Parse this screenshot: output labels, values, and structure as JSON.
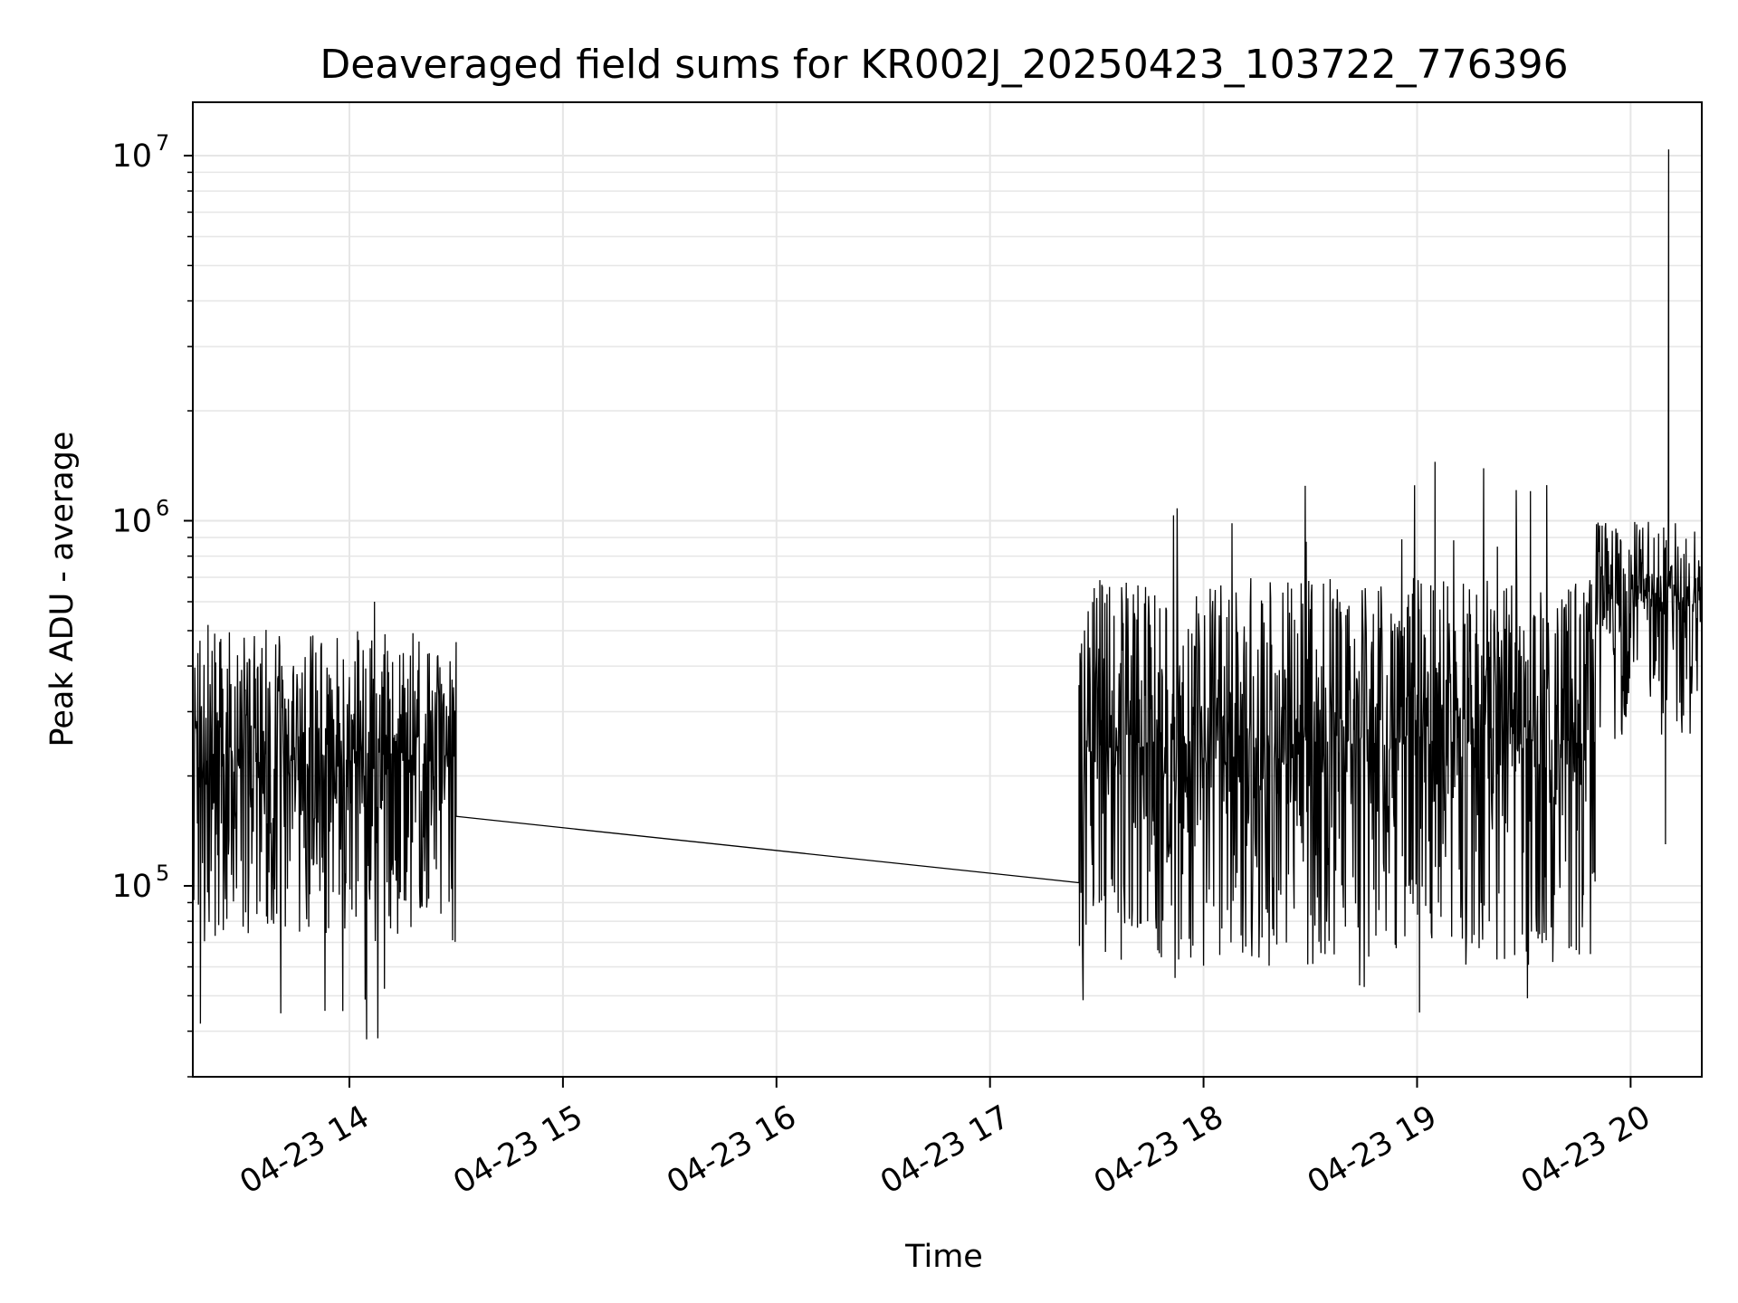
{
  "chart_data": {
    "type": "line",
    "title": "Deaveraged field sums for KR002J_20250423_103722_776396",
    "xlabel": "Time",
    "ylabel": "Peak ADU - average",
    "yscale": "log",
    "ylim": [
      30000,
      14000000
    ],
    "xlim": [
      "04-23 13:16",
      "04-23 20:20"
    ],
    "grid": true,
    "line_color": "#000000",
    "grid_color": "#e6e6e6",
    "x_ticks": [
      {
        "label": "04-23 14",
        "hour": 14
      },
      {
        "label": "04-23 15",
        "hour": 15
      },
      {
        "label": "04-23 16",
        "hour": 16
      },
      {
        "label": "04-23 17",
        "hour": 17
      },
      {
        "label": "04-23 18",
        "hour": 18
      },
      {
        "label": "04-23 19",
        "hour": 19
      },
      {
        "label": "04-23 20",
        "hour": 20
      }
    ],
    "y_ticks": [
      {
        "base": "10",
        "exp": "5",
        "value": 100000
      },
      {
        "base": "10",
        "exp": "6",
        "value": 1000000
      },
      {
        "base": "10",
        "exp": "7",
        "value": 10000000
      }
    ],
    "series": [
      {
        "segments": [
          {
            "time_start": "04-23 13:16",
            "time_end": "04-23 14:30",
            "baseline": 220000,
            "typical_min": 70000,
            "typical_max": 500000,
            "max": 600000,
            "min": 38000
          },
          {
            "time_start": "04-23 14:30",
            "time_end": "04-23 17:25",
            "points": [
              [
                "04-23 14:30",
                155000
              ],
              [
                "04-23 17:25",
                102000
              ]
            ]
          },
          {
            "time_start": "04-23 17:25",
            "time_end": "04-23 19:50",
            "baseline": 250000,
            "typical_min": 60000,
            "typical_max": 700000,
            "max": 1450000,
            "min": 45000
          },
          {
            "time_start": "04-23 19:50",
            "time_end": "04-23 20:20",
            "baseline": 600000,
            "typical_min": 250000,
            "typical_max": 1000000,
            "max": 10400000,
            "min": 130000
          }
        ]
      }
    ]
  }
}
